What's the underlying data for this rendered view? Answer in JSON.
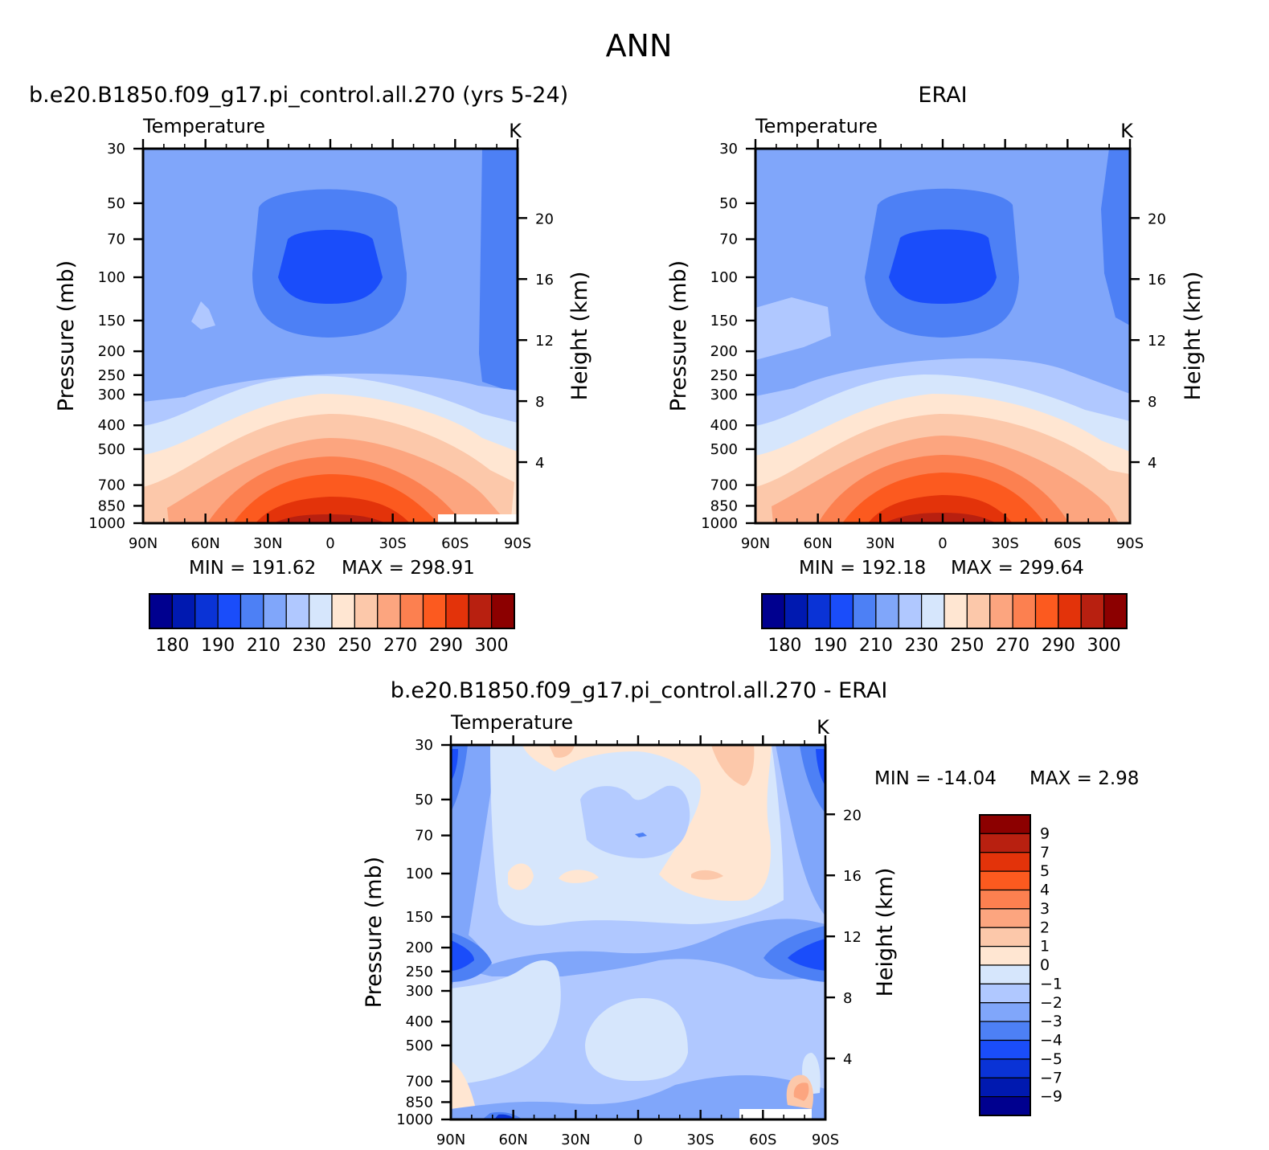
{
  "page": {
    "title": "ANN"
  },
  "chart_data": [
    {
      "type": "contour",
      "panel": "model",
      "title": "b.e20.B1850.f09_g17.pi_control.all.270 (yrs 5-24)",
      "variable": "Temperature",
      "units": "K",
      "ylabel": "Pressure (mb)",
      "ylabel_right": "Height (km)",
      "xticks": [
        "90N",
        "60N",
        "30N",
        "0",
        "30S",
        "60S",
        "90S"
      ],
      "yticks": [
        "30",
        "50",
        "70",
        "100",
        "150",
        "200",
        "250",
        "300",
        "400",
        "500",
        "700",
        "850",
        "1000"
      ],
      "right_ticks": [
        "20",
        "16",
        "12",
        "8",
        "4"
      ],
      "min_label": "MIN = 191.62",
      "max_label": "MAX = 298.91",
      "min": 191.62,
      "max": 298.91,
      "colorbar_labels": [
        "180",
        "190",
        "210",
        "230",
        "250",
        "270",
        "290",
        "300"
      ],
      "levels": [
        180,
        185,
        190,
        200,
        210,
        220,
        230,
        240,
        250,
        260,
        270,
        280,
        290,
        295,
        300
      ]
    },
    {
      "type": "contour",
      "panel": "obs",
      "title": "ERAI",
      "variable": "Temperature",
      "units": "K",
      "ylabel": "Pressure (mb)",
      "ylabel_right": "Height (km)",
      "xticks": [
        "90N",
        "60N",
        "30N",
        "0",
        "30S",
        "60S",
        "90S"
      ],
      "yticks": [
        "30",
        "50",
        "70",
        "100",
        "150",
        "200",
        "250",
        "300",
        "400",
        "500",
        "700",
        "850",
        "1000"
      ],
      "right_ticks": [
        "20",
        "16",
        "12",
        "8",
        "4"
      ],
      "min_label": "MIN = 192.18",
      "max_label": "MAX = 299.64",
      "min": 192.18,
      "max": 299.64,
      "colorbar_labels": [
        "180",
        "190",
        "210",
        "230",
        "250",
        "270",
        "290",
        "300"
      ],
      "levels": [
        180,
        185,
        190,
        200,
        210,
        220,
        230,
        240,
        250,
        260,
        270,
        280,
        290,
        295,
        300
      ]
    },
    {
      "type": "contour",
      "panel": "difference",
      "title": "b.e20.B1850.f09_g17.pi_control.all.270 - ERAI",
      "variable": "Temperature",
      "units": "K",
      "ylabel": "Pressure (mb)",
      "ylabel_right": "Height (km)",
      "xticks": [
        "90N",
        "60N",
        "30N",
        "0",
        "30S",
        "60S",
        "90S"
      ],
      "yticks": [
        "30",
        "50",
        "70",
        "100",
        "150",
        "200",
        "250",
        "300",
        "400",
        "500",
        "700",
        "850",
        "1000"
      ],
      "right_ticks": [
        "20",
        "16",
        "12",
        "8",
        "4"
      ],
      "min_label": "MIN = -14.04",
      "max_label": "MAX = 2.98",
      "min": -14.04,
      "max": 2.98,
      "colorbar_labels": [
        "9",
        "7",
        "5",
        "4",
        "3",
        "2",
        "1",
        "0",
        "-1",
        "-2",
        "-3",
        "-4",
        "-5",
        "-7",
        "-9"
      ]
    }
  ],
  "colors": {
    "seq": [
      "#00008f",
      "#0019b0",
      "#0a33d6",
      "#1a4dfa",
      "#4d80f5",
      "#80a6fa",
      "#b0c8ff",
      "#d6e6fc",
      "#ffe6d2",
      "#fcc8aa",
      "#fca57f",
      "#fc8050",
      "#fc5a1f",
      "#e3330a",
      "#b82010",
      "#8c0000"
    ],
    "diff": [
      "#8c0000",
      "#b82010",
      "#e3330a",
      "#fc5a1f",
      "#fc8050",
      "#fca57f",
      "#fcc8aa",
      "#ffe6d2",
      "#d6e6fc",
      "#b0c8ff",
      "#80a6fa",
      "#4d80f5",
      "#1a4dfa",
      "#0a33d6",
      "#0019b0",
      "#00008f"
    ]
  }
}
